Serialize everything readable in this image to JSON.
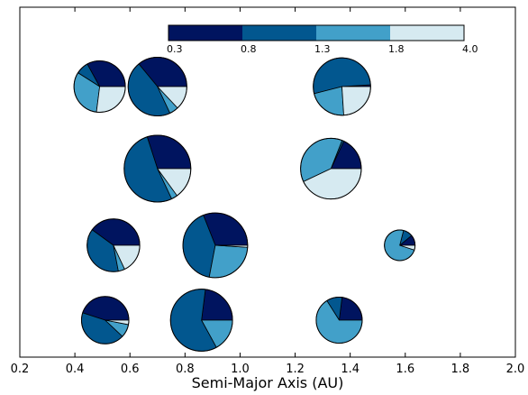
{
  "chart_data": {
    "type": "pie",
    "xlabel": "Semi-Major Axis (AU)",
    "ylabel": "",
    "xlim": [
      0.2,
      2.0
    ],
    "x_ticks": [
      "0.2",
      "0.4",
      "0.6",
      "0.8",
      "1.0",
      "1.2",
      "1.4",
      "1.6",
      "1.8",
      "2.0"
    ],
    "y_ticks_visible": false,
    "grid": false,
    "colorbar": {
      "placement": "top-center",
      "tick_labels": [
        "0.3",
        "0.8",
        "1.3",
        "1.8",
        "4.0"
      ],
      "bins": [
        {
          "range": "0.3-0.8",
          "color": "#00145f"
        },
        {
          "range": "0.8-1.3",
          "color": "#02578f"
        },
        {
          "range": "1.3-1.8",
          "color": "#42a0c9"
        },
        {
          "range": "1.8-4.0",
          "color": "#d6eaf1"
        }
      ]
    },
    "row_count": 4,
    "pies": [
      {
        "x": 0.49,
        "row": 1,
        "size": 0.77,
        "fractions": [
          0.33,
          0.08,
          0.32,
          0.27
        ]
      },
      {
        "x": 0.7,
        "row": 1,
        "size": 0.88,
        "fractions": [
          0.36,
          0.46,
          0.05,
          0.13
        ]
      },
      {
        "x": 1.37,
        "row": 1,
        "size": 0.86,
        "fractions": [
          0.01,
          0.53,
          0.22,
          0.24
        ]
      },
      {
        "x": 0.7,
        "row": 2,
        "size": 1.0,
        "fractions": [
          0.3,
          0.52,
          0.03,
          0.15
        ]
      },
      {
        "x": 1.33,
        "row": 2,
        "size": 0.91,
        "fractions": [
          0.18,
          0.01,
          0.38,
          0.43
        ]
      },
      {
        "x": 0.54,
        "row": 3,
        "size": 0.79,
        "fractions": [
          0.4,
          0.38,
          0.04,
          0.18
        ]
      },
      {
        "x": 0.91,
        "row": 3,
        "size": 0.97,
        "fractions": [
          0.31,
          0.41,
          0.27,
          0.01
        ]
      },
      {
        "x": 1.58,
        "row": 3,
        "size": 0.46,
        "fractions": [
          0.11,
          0.1,
          0.74,
          0.05
        ]
      },
      {
        "x": 0.51,
        "row": 4,
        "size": 0.71,
        "fractions": [
          0.45,
          0.43,
          0.09,
          0.03
        ]
      },
      {
        "x": 0.86,
        "row": 4,
        "size": 0.93,
        "fractions": [
          0.23,
          0.6,
          0.17,
          0.0
        ]
      },
      {
        "x": 1.36,
        "row": 4,
        "size": 0.69,
        "fractions": [
          0.23,
          0.11,
          0.66,
          0.0
        ]
      }
    ]
  }
}
